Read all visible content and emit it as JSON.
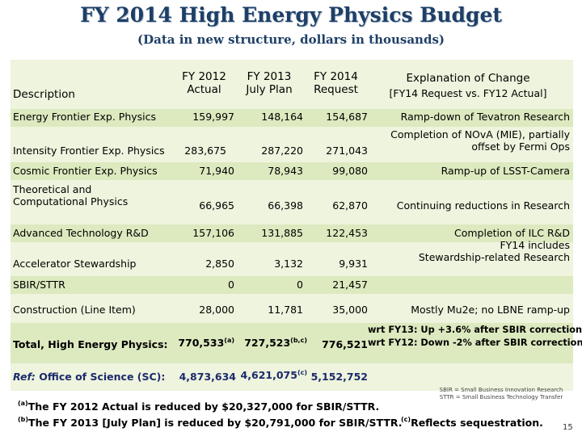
{
  "title": "FY 2014 High Energy Physics Budget",
  "subtitle": "(Data in new structure, dollars in thousands)",
  "headers": {
    "description": "Description",
    "fy2012_line1": "FY 2012",
    "fy2012_line2": "Actual",
    "fy2013_line1": "FY 2013",
    "fy2013_line2": "July Plan",
    "fy2014_line1": "FY 2014",
    "fy2014_line2": "Request",
    "explanation_line1": "Explanation of Change",
    "explanation_line2": "[FY14 Request vs. FY12 Actual]"
  },
  "rows": [
    {
      "desc": "Energy Frontier Exp. Physics",
      "fy2012": "159,997",
      "fy2013": "148,164",
      "fy2014": "154,687",
      "explanation": "Ramp-down of Tevatron Research"
    },
    {
      "desc": "Intensity Frontier Exp. Physics",
      "fy2012": "283,675",
      "fy2013": "287,220",
      "fy2014": "271,043",
      "explanation_line1": "Completion of NOvA (MIE), partially",
      "explanation_line2": "offset by Fermi Ops"
    },
    {
      "desc": "Cosmic Frontier Exp. Physics",
      "fy2012": "71,940",
      "fy2013": "78,943",
      "fy2014": "99,080",
      "explanation": "Ramp-up of LSST-Camera"
    },
    {
      "desc_line1": "Theoretical and",
      "desc_line2": "Computational Physics",
      "fy2012": "66,965",
      "fy2013": "66,398",
      "fy2014": "62,870",
      "explanation": "Continuing  reductions in Research"
    },
    {
      "desc": "Advanced Technology R&D",
      "fy2012": "157,106",
      "fy2013": "131,885",
      "fy2014": "122,453",
      "explanation_line1": "Completion of ILC R&D",
      "explanation_line2": "FY14 includes",
      "explanation_line3": "Stewardship-related Research"
    },
    {
      "desc": "Accelerator Stewardship",
      "fy2012": "2,850",
      "fy2013": "3,132",
      "fy2014": "9,931"
    },
    {
      "desc": "SBIR/STTR",
      "fy2012": "0",
      "fy2013": "0",
      "fy2014": "21,457"
    },
    {
      "desc": "Construction (Line Item)",
      "fy2012": "28,000",
      "fy2013": "11,781",
      "fy2014": "35,000",
      "explanation": "Mostly Mu2e;  no LBNE ramp-up"
    }
  ],
  "total": {
    "desc": "Total, High Energy Physics:",
    "fy2012": "770,533",
    "fy2012_note": "(a)",
    "fy2013": "727,523",
    "fy2013_note": "(b,c)",
    "fy2014": "776,521",
    "explanation_line1": "wrt FY13:  Up +3.6% after SBIR correction",
    "explanation_line2": "wrt FY12: Down -2% after SBIR correction"
  },
  "ref": {
    "prefix": "Ref:",
    "desc": " Office of Science (SC):",
    "fy2012": "4,873,634",
    "fy2013": "4,621,075",
    "fy2013_note": "(c)",
    "fy2014": "5,152,752"
  },
  "footnotes": {
    "a_mark": "(a)",
    "a_text": "The FY 2012 Actual is reduced by $20,327,000 for SBIR/STTR.",
    "b_mark": "(b)",
    "b_text": "The FY 2013 [July Plan] is reduced by $20,791,000 for SBIR/STTR.",
    "c_mark": "(c)",
    "c_text": "Reflects sequestration.",
    "sbir": "SBIR = Small Business Innovation Research",
    "sttr": "STTR = Small Business Technology Transfer"
  },
  "page_number": "15",
  "colors": {
    "title": "#1e3f66",
    "table_bg": "#eef4dd",
    "stripe": "#dde9bf",
    "navy": "#1b2a6b"
  }
}
